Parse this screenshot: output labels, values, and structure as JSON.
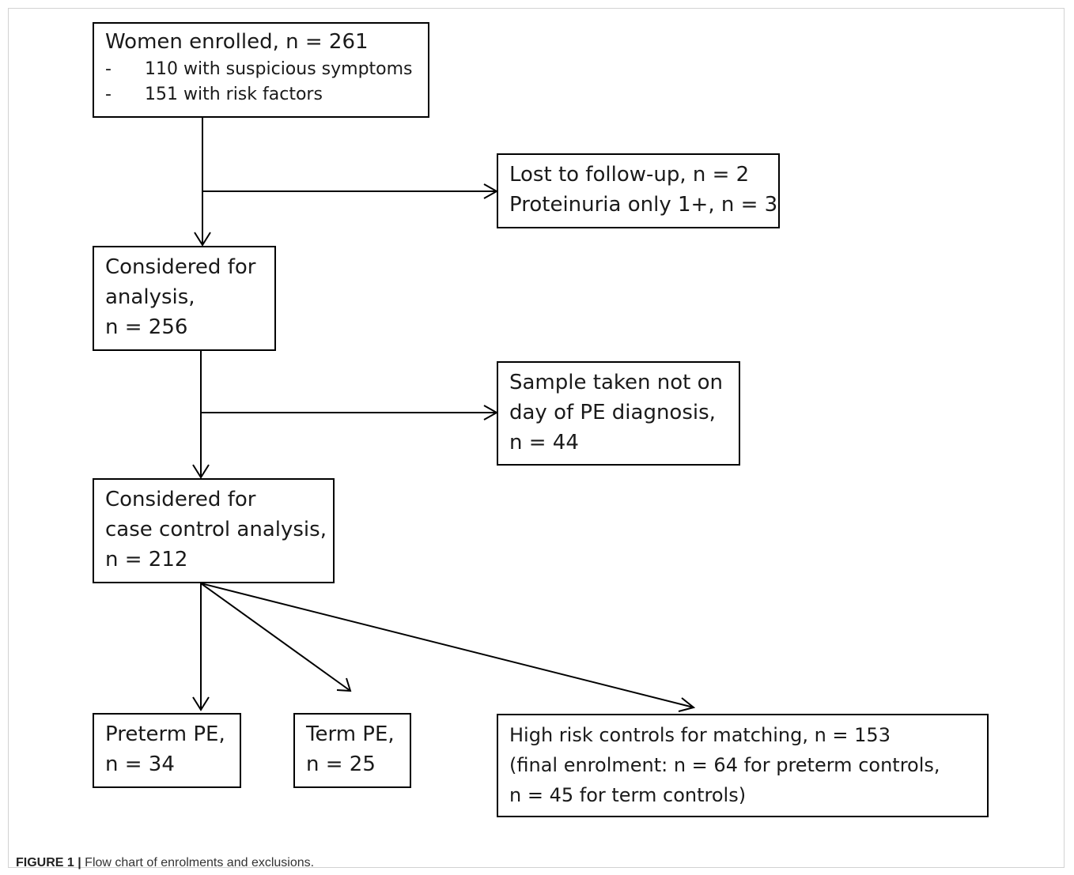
{
  "boxes": {
    "enrolled": {
      "title": "Women enrolled, n = 261",
      "bullets": [
        {
          "dash": "-",
          "text": "110 with suspicious symptoms"
        },
        {
          "dash": "-",
          "text": "151 with risk factors"
        }
      ]
    },
    "excluded_1": {
      "lines": [
        "Lost to follow-up, n = 2",
        "Proteinuria only 1+, n = 3"
      ]
    },
    "analysis": {
      "lines": [
        "Considered for",
        "analysis,",
        "n = 256"
      ]
    },
    "excluded_2": {
      "lines": [
        "Sample taken not on",
        "day of PE diagnosis,",
        "n = 44"
      ]
    },
    "case_control": {
      "lines": [
        "Considered for",
        "case control analysis,",
        "n = 212"
      ]
    },
    "preterm": {
      "lines": [
        "Preterm PE,",
        "n = 34"
      ]
    },
    "term": {
      "lines": [
        "Term PE,",
        "n = 25"
      ]
    },
    "controls": {
      "lines": [
        "High risk controls for matching, n = 153",
        "(final enrolment: n = 64 for preterm controls,",
        "n = 45 for term controls)"
      ]
    }
  },
  "caption": {
    "label": "FIGURE 1 |",
    "text": "Flow chart of enrolments and exclusions."
  }
}
